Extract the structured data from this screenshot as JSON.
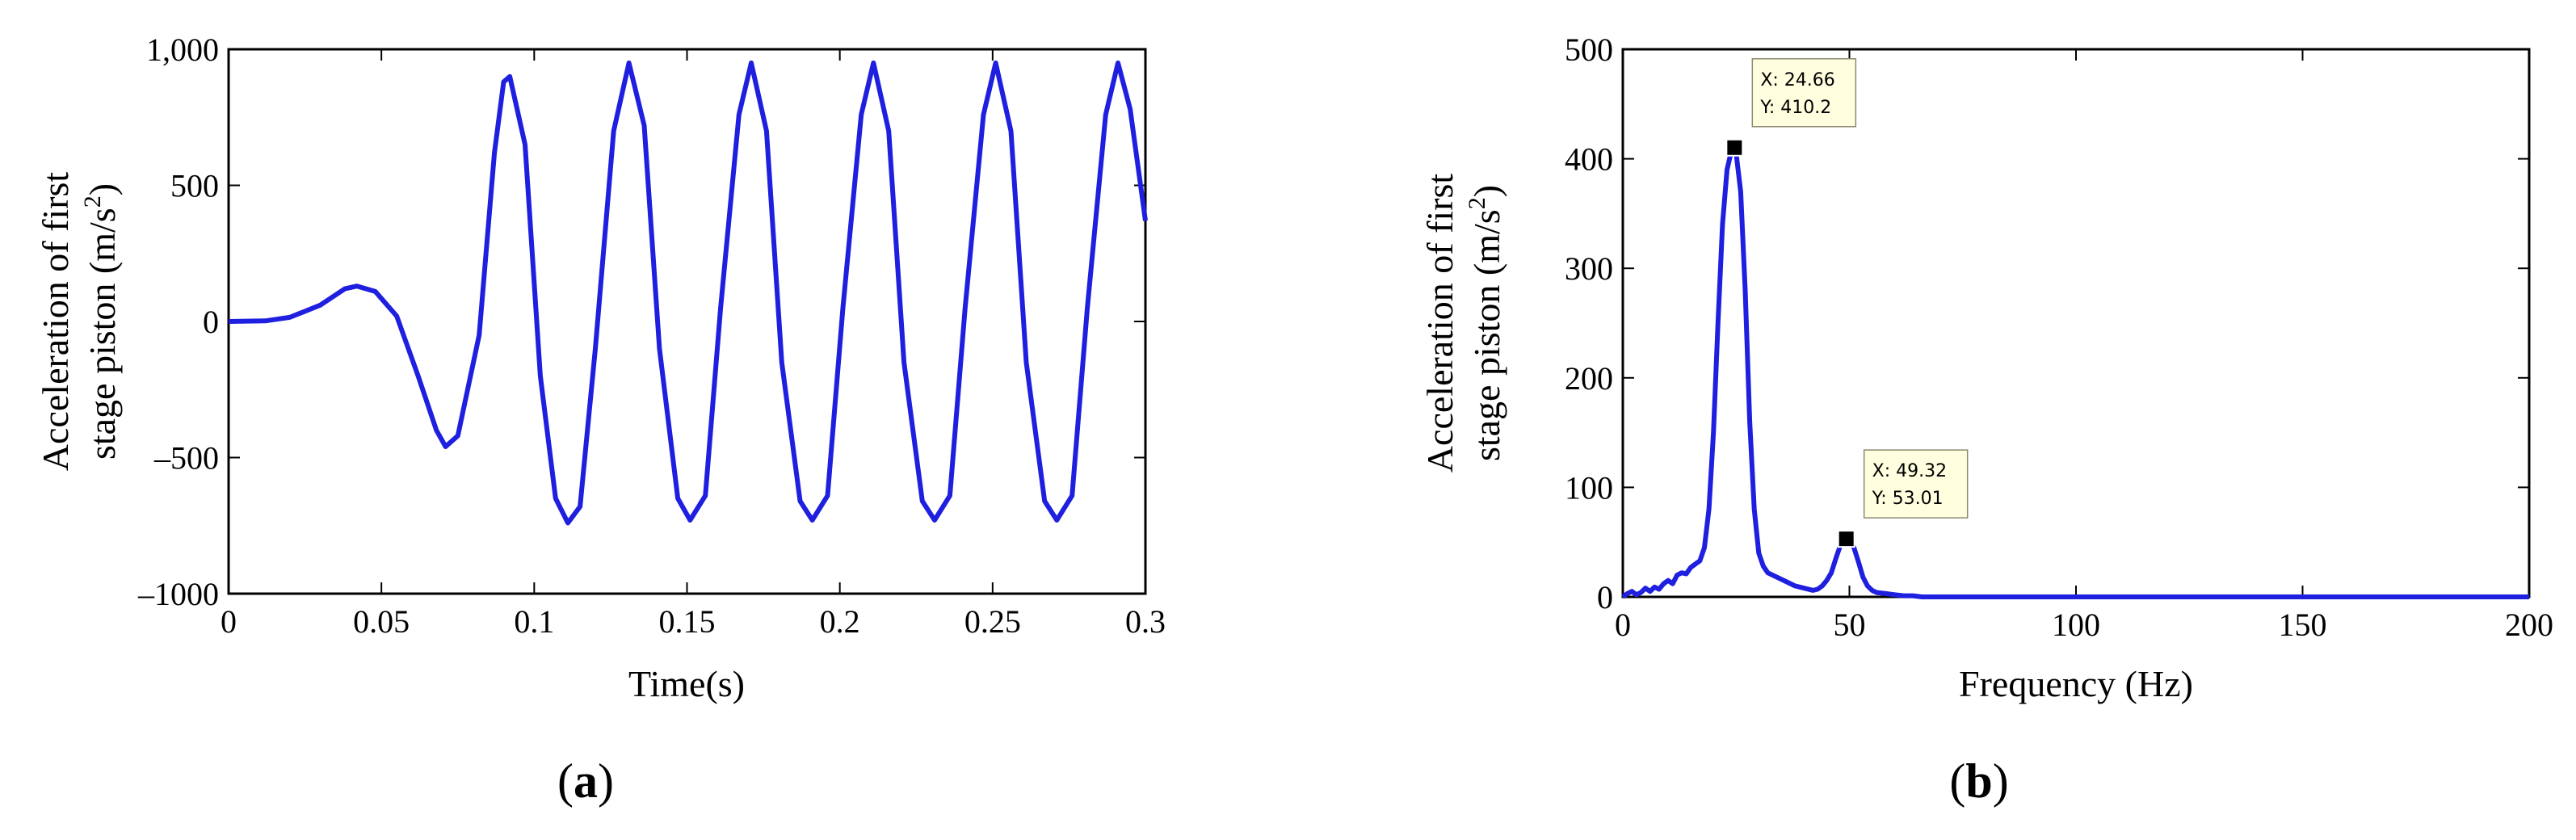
{
  "chart_data": [
    {
      "type": "line",
      "panel_label": "(a)",
      "panel_letter": "a",
      "xlabel": "Time(s)",
      "ylabel_line1": "Acceleration of first",
      "ylabel_line2": "stage piston (m/s",
      "ylabel_sup": "2",
      "ylabel_close": ")",
      "xlim": [
        0,
        0.3
      ],
      "ylim": [
        -1000,
        1000
      ],
      "x_ticks": [
        0,
        0.05,
        0.1,
        0.15,
        0.2,
        0.25,
        0.3
      ],
      "x_tick_labels": [
        "0",
        "0.05",
        "0.1",
        "0.15",
        "0.2",
        "0.25",
        "0.3"
      ],
      "y_ticks": [
        1000,
        500,
        0,
        -500,
        -1000
      ],
      "y_tick_labels": [
        "1,000",
        "500",
        "0",
        "–500",
        "–1000"
      ],
      "grid": false,
      "line_color": "#1f1fe0",
      "series": [
        {
          "points": [
            [
              0,
              0
            ],
            [
              0.012,
              2
            ],
            [
              0.02,
              15
            ],
            [
              0.03,
              60
            ],
            [
              0.038,
              120
            ],
            [
              0.042,
              130
            ],
            [
              0.048,
              110
            ],
            [
              0.055,
              20
            ],
            [
              0.062,
              -200
            ],
            [
              0.068,
              -400
            ],
            [
              0.071,
              -460
            ],
            [
              0.075,
              -420
            ],
            [
              0.082,
              -50
            ],
            [
              0.087,
              620
            ],
            [
              0.09,
              880
            ],
            [
              0.092,
              900
            ],
            [
              0.097,
              650
            ],
            [
              0.102,
              -200
            ],
            [
              0.107,
              -650
            ],
            [
              0.111,
              -740
            ],
            [
              0.115,
              -680
            ],
            [
              0.12,
              -100
            ],
            [
              0.126,
              700
            ],
            [
              0.131,
              950
            ],
            [
              0.136,
              720
            ],
            [
              0.141,
              -100
            ],
            [
              0.147,
              -650
            ],
            [
              0.151,
              -730
            ],
            [
              0.156,
              -640
            ],
            [
              0.161,
              50
            ],
            [
              0.167,
              760
            ],
            [
              0.171,
              950
            ],
            [
              0.176,
              700
            ],
            [
              0.181,
              -150
            ],
            [
              0.187,
              -660
            ],
            [
              0.191,
              -730
            ],
            [
              0.196,
              -640
            ],
            [
              0.201,
              50
            ],
            [
              0.207,
              760
            ],
            [
              0.211,
              950
            ],
            [
              0.216,
              700
            ],
            [
              0.221,
              -150
            ],
            [
              0.227,
              -660
            ],
            [
              0.231,
              -730
            ],
            [
              0.236,
              -640
            ],
            [
              0.241,
              50
            ],
            [
              0.247,
              760
            ],
            [
              0.251,
              950
            ],
            [
              0.256,
              700
            ],
            [
              0.261,
              -150
            ],
            [
              0.267,
              -660
            ],
            [
              0.271,
              -730
            ],
            [
              0.276,
              -640
            ],
            [
              0.281,
              50
            ],
            [
              0.287,
              760
            ],
            [
              0.291,
              950
            ],
            [
              0.295,
              780
            ],
            [
              0.3,
              370
            ]
          ]
        }
      ]
    },
    {
      "type": "line",
      "panel_label": "(b)",
      "panel_letter": "b",
      "xlabel": "Frequency (Hz)",
      "ylabel_line1": "Acceleration of first",
      "ylabel_line2": "stage piston (m/s",
      "ylabel_sup": "2",
      "ylabel_close": ")",
      "xlim": [
        0,
        200
      ],
      "ylim": [
        0,
        500
      ],
      "x_ticks": [
        0,
        50,
        100,
        150,
        200
      ],
      "x_tick_labels": [
        "0",
        "50",
        "100",
        "150",
        "200"
      ],
      "y_ticks": [
        500,
        400,
        300,
        200,
        100,
        0
      ],
      "y_tick_labels": [
        "500",
        "400",
        "300",
        "200",
        "100",
        "0"
      ],
      "grid": false,
      "line_color": "#1f1fe0",
      "series": [
        {
          "points": [
            [
              0,
              0
            ],
            [
              1,
              3
            ],
            [
              2,
              5
            ],
            [
              3,
              2
            ],
            [
              4,
              4
            ],
            [
              5,
              8
            ],
            [
              6,
              5
            ],
            [
              7,
              9
            ],
            [
              8,
              7
            ],
            [
              9,
              12
            ],
            [
              10,
              15
            ],
            [
              11,
              12
            ],
            [
              12,
              20
            ],
            [
              13,
              22
            ],
            [
              14,
              21
            ],
            [
              15,
              27
            ],
            [
              16,
              30
            ],
            [
              17,
              33
            ],
            [
              18,
              45
            ],
            [
              19,
              80
            ],
            [
              20,
              150
            ],
            [
              21,
              250
            ],
            [
              22,
              340
            ],
            [
              23,
              390
            ],
            [
              24,
              408
            ],
            [
              24.66,
              410.2
            ],
            [
              25,
              405
            ],
            [
              26,
              370
            ],
            [
              27,
              280
            ],
            [
              28,
              160
            ],
            [
              29,
              80
            ],
            [
              30,
              40
            ],
            [
              31,
              28
            ],
            [
              32,
              22
            ],
            [
              34,
              18
            ],
            [
              36,
              14
            ],
            [
              38,
              10
            ],
            [
              40,
              8
            ],
            [
              42,
              6
            ],
            [
              43,
              7
            ],
            [
              44,
              10
            ],
            [
              45,
              15
            ],
            [
              46,
              22
            ],
            [
              47,
              35
            ],
            [
              48,
              47
            ],
            [
              49.32,
              53.01
            ],
            [
              50,
              52
            ],
            [
              51,
              45
            ],
            [
              52,
              32
            ],
            [
              53,
              18
            ],
            [
              54,
              10
            ],
            [
              55,
              6
            ],
            [
              56,
              4
            ],
            [
              58,
              3
            ],
            [
              60,
              2
            ],
            [
              62,
              1
            ],
            [
              64,
              1
            ],
            [
              66,
              0
            ],
            [
              80,
              0
            ],
            [
              100,
              0
            ],
            [
              120,
              0
            ],
            [
              140,
              0
            ],
            [
              160,
              0
            ],
            [
              180,
              0
            ],
            [
              200,
              0
            ]
          ]
        }
      ],
      "annotations": [
        {
          "x": 24.66,
          "y": 410.2,
          "line1": "X: 24.66",
          "line2": "Y: 410.2"
        },
        {
          "x": 49.32,
          "y": 53.01,
          "line1": "X: 49.32",
          "line2": "Y: 53.01"
        }
      ]
    }
  ]
}
